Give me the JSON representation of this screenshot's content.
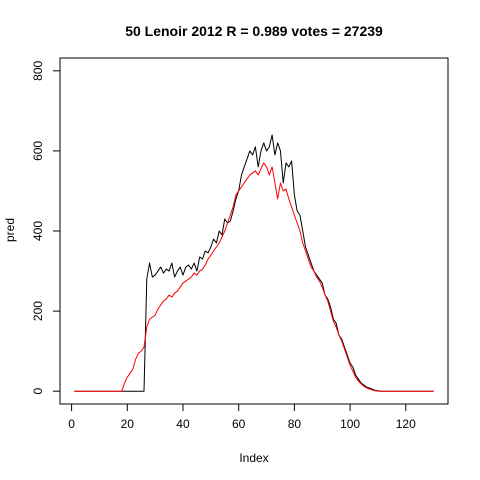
{
  "chart_data": {
    "type": "line",
    "title": "50 Lenoir 2012 R = 0.989 votes = 27239",
    "xlabel": "Index",
    "ylabel": "pred",
    "xlim": [
      0,
      130
    ],
    "ylim": [
      0,
      800
    ],
    "xticks": [
      0,
      20,
      40,
      60,
      80,
      100,
      120
    ],
    "yticks": [
      0,
      200,
      400,
      600,
      800
    ],
    "grid": false,
    "series": [
      {
        "name": "black",
        "color": "#000000",
        "x": [
          1,
          2,
          3,
          4,
          5,
          6,
          7,
          8,
          9,
          10,
          11,
          12,
          13,
          14,
          15,
          16,
          17,
          18,
          19,
          20,
          21,
          22,
          23,
          24,
          25,
          26,
          27,
          28,
          29,
          30,
          31,
          32,
          33,
          34,
          35,
          36,
          37,
          38,
          39,
          40,
          41,
          42,
          43,
          44,
          45,
          46,
          47,
          48,
          49,
          50,
          51,
          52,
          53,
          54,
          55,
          56,
          57,
          58,
          59,
          60,
          61,
          62,
          63,
          64,
          65,
          66,
          67,
          68,
          69,
          70,
          71,
          72,
          73,
          74,
          75,
          76,
          77,
          78,
          79,
          80,
          81,
          82,
          83,
          84,
          85,
          86,
          87,
          88,
          89,
          90,
          91,
          92,
          93,
          94,
          95,
          96,
          97,
          98,
          99,
          100,
          101,
          102,
          103,
          104,
          105,
          106,
          107,
          108,
          109,
          110,
          111,
          112,
          113,
          114,
          115,
          116,
          117,
          118,
          119,
          120,
          121,
          122,
          123,
          124,
          125,
          126,
          127,
          128,
          129,
          130
        ],
        "values": [
          0,
          0,
          0,
          0,
          0,
          0,
          0,
          0,
          0,
          0,
          0,
          0,
          0,
          0,
          0,
          0,
          0,
          0,
          0,
          0,
          0,
          0,
          0,
          0,
          0,
          0,
          280,
          320,
          285,
          290,
          300,
          310,
          295,
          305,
          300,
          320,
          285,
          300,
          310,
          290,
          310,
          315,
          305,
          320,
          300,
          335,
          330,
          350,
          345,
          360,
          380,
          370,
          400,
          390,
          430,
          420,
          425,
          450,
          480,
          500,
          540,
          560,
          580,
          600,
          590,
          610,
          560,
          600,
          620,
          600,
          610,
          640,
          590,
          620,
          600,
          520,
          570,
          560,
          575,
          490,
          450,
          440,
          400,
          360,
          340,
          320,
          300,
          290,
          280,
          270,
          240,
          230,
          210,
          180,
          170,
          140,
          130,
          110,
          90,
          70,
          60,
          40,
          30,
          20,
          15,
          10,
          8,
          5,
          2,
          1,
          0,
          0,
          0,
          0,
          0,
          0,
          0,
          0,
          0,
          0,
          0,
          0,
          0,
          0,
          0,
          0,
          0,
          0,
          0,
          0
        ],
        "note": "values reconstructed approximately from the plot"
      },
      {
        "name": "red",
        "color": "#ff0000",
        "x": [
          1,
          2,
          3,
          4,
          5,
          6,
          7,
          8,
          9,
          10,
          11,
          12,
          13,
          14,
          15,
          16,
          17,
          18,
          19,
          20,
          21,
          22,
          23,
          24,
          25,
          26,
          27,
          28,
          29,
          30,
          31,
          32,
          33,
          34,
          35,
          36,
          37,
          38,
          39,
          40,
          41,
          42,
          43,
          44,
          45,
          46,
          47,
          48,
          49,
          50,
          51,
          52,
          53,
          54,
          55,
          56,
          57,
          58,
          59,
          60,
          61,
          62,
          63,
          64,
          65,
          66,
          67,
          68,
          69,
          70,
          71,
          72,
          73,
          74,
          75,
          76,
          77,
          78,
          79,
          80,
          81,
          82,
          83,
          84,
          85,
          86,
          87,
          88,
          89,
          90,
          91,
          92,
          93,
          94,
          95,
          96,
          97,
          98,
          99,
          100,
          101,
          102,
          103,
          104,
          105,
          106,
          107,
          108,
          109,
          110,
          111,
          112,
          113,
          114,
          115,
          116,
          117,
          118,
          119,
          120,
          121,
          122,
          123,
          124,
          125,
          126,
          127,
          128,
          129,
          130
        ],
        "values": [
          0,
          0,
          0,
          0,
          0,
          0,
          0,
          0,
          0,
          0,
          0,
          0,
          0,
          0,
          0,
          0,
          0,
          0,
          20,
          35,
          45,
          55,
          80,
          95,
          100,
          110,
          160,
          180,
          185,
          190,
          205,
          215,
          225,
          230,
          240,
          235,
          245,
          250,
          260,
          270,
          275,
          280,
          285,
          295,
          290,
          300,
          305,
          315,
          330,
          340,
          350,
          360,
          370,
          385,
          400,
          420,
          440,
          460,
          490,
          500,
          510,
          520,
          530,
          540,
          545,
          550,
          540,
          555,
          570,
          560,
          540,
          560,
          520,
          480,
          520,
          500,
          505,
          480,
          460,
          440,
          420,
          400,
          370,
          350,
          330,
          310,
          300,
          285,
          275,
          260,
          240,
          225,
          200,
          175,
          160,
          140,
          125,
          105,
          85,
          65,
          50,
          35,
          25,
          18,
          12,
          8,
          5,
          3,
          1,
          0,
          0,
          0,
          0,
          0,
          0,
          0,
          0,
          0,
          0,
          0,
          0,
          0,
          0,
          0,
          0,
          0,
          0,
          0,
          0,
          0
        ]
      }
    ]
  }
}
